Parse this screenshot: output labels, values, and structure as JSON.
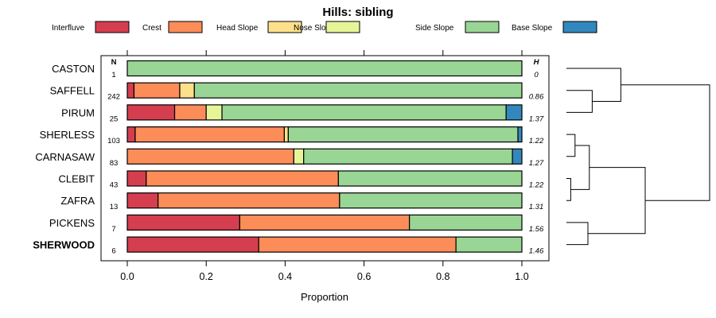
{
  "chart_data": {
    "type": "bar",
    "stacked": true,
    "orientation": "horizontal",
    "title": "Hills: sibling",
    "xlabel": "Proportion",
    "ylabel": "",
    "xlim": [
      0,
      1
    ],
    "xticks": [
      0,
      0.2,
      0.4,
      0.6,
      0.8,
      1
    ],
    "xtick_labels": [
      "0.0",
      "0.2",
      "0.4",
      "0.6",
      "0.8",
      "1.0"
    ],
    "n_header": "N",
    "h_header": "H",
    "highlighted_category": "SHERWOOD",
    "categories": [
      "CASTON",
      "SAFFELL",
      "PIRUM",
      "SHERLESS",
      "CARNASAW",
      "CLEBIT",
      "ZAFRA",
      "PICKENS",
      "SHERWOOD"
    ],
    "n": [
      "1",
      "242",
      "25",
      "103",
      "83",
      "43",
      "13",
      "7",
      "6"
    ],
    "h": [
      "0",
      "0.86",
      "1.37",
      "1.22",
      "1.27",
      "1.22",
      "1.31",
      "1.56",
      "1.46"
    ],
    "series": [
      {
        "name": "Interfluve",
        "color": "#d53e4f",
        "values": [
          0,
          0.017,
          0.12,
          0.02,
          0,
          0.048,
          0.078,
          0.285,
          0.333
        ]
      },
      {
        "name": "Crest",
        "color": "#fc8d59",
        "values": [
          0,
          0.116,
          0.08,
          0.378,
          0.422,
          0.487,
          0.46,
          0.43,
          0.5
        ]
      },
      {
        "name": "Head Slope",
        "color": "#fee08b",
        "values": [
          0,
          0.037,
          0,
          0.01,
          0,
          0,
          0,
          0,
          0
        ]
      },
      {
        "name": "Nose Slope",
        "color": "#e6f598",
        "values": [
          0,
          0,
          0.04,
          0,
          0.025,
          0,
          0,
          0,
          0
        ]
      },
      {
        "name": "Side Slope",
        "color": "#99d594",
        "values": [
          1,
          0.83,
          0.72,
          0.582,
          0.529,
          0.465,
          0.462,
          0.285,
          0.167
        ]
      },
      {
        "name": "Base Slope",
        "color": "#3288bd",
        "values": [
          0,
          0,
          0.04,
          0.01,
          0.024,
          0,
          0,
          0,
          0
        ]
      }
    ],
    "dendrogram": {
      "merges": [
        {
          "left": "SAFFELL",
          "right": "PIRUM",
          "height": 0.18
        },
        {
          "left": "CASTON",
          "right": [
            "SAFFELL",
            "PIRUM"
          ],
          "height": 0.38
        },
        {
          "left": "CLEBIT",
          "right": "ZAFRA",
          "height": 0.03
        },
        {
          "left": "SHERLESS",
          "right": "CARNASAW",
          "height": 0.06
        },
        {
          "left": [
            "SHERLESS",
            "CARNASAW"
          ],
          "right": [
            "CLEBIT",
            "ZAFRA"
          ],
          "height": 0.16
        },
        {
          "left": "PICKENS",
          "right": "SHERWOOD",
          "height": 0.15
        },
        {
          "left": [
            "SHERLESS",
            "CARNASAW",
            "CLEBIT",
            "ZAFRA"
          ],
          "right": [
            "PICKENS",
            "SHERWOOD"
          ],
          "height": 0.55
        },
        {
          "left": [
            "CASTON",
            "SAFFELL",
            "PIRUM"
          ],
          "right": [
            "SHERLESS",
            "CARNASAW",
            "CLEBIT",
            "ZAFRA",
            "PICKENS",
            "SHERWOOD"
          ],
          "height": 1.0
        }
      ]
    }
  }
}
